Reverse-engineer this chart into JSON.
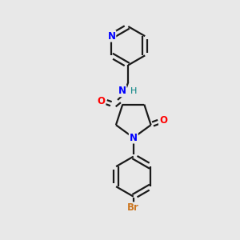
{
  "bg_color": "#e8e8e8",
  "bond_color": "#1a1a1a",
  "N_color": "#0000ff",
  "O_color": "#ff0000",
  "Br_color": "#cc7722",
  "H_color": "#008080",
  "linewidth": 1.6,
  "figsize": [
    3.0,
    3.0
  ],
  "dpi": 100,
  "xlim": [
    0,
    10
  ],
  "ylim": [
    0,
    10
  ]
}
